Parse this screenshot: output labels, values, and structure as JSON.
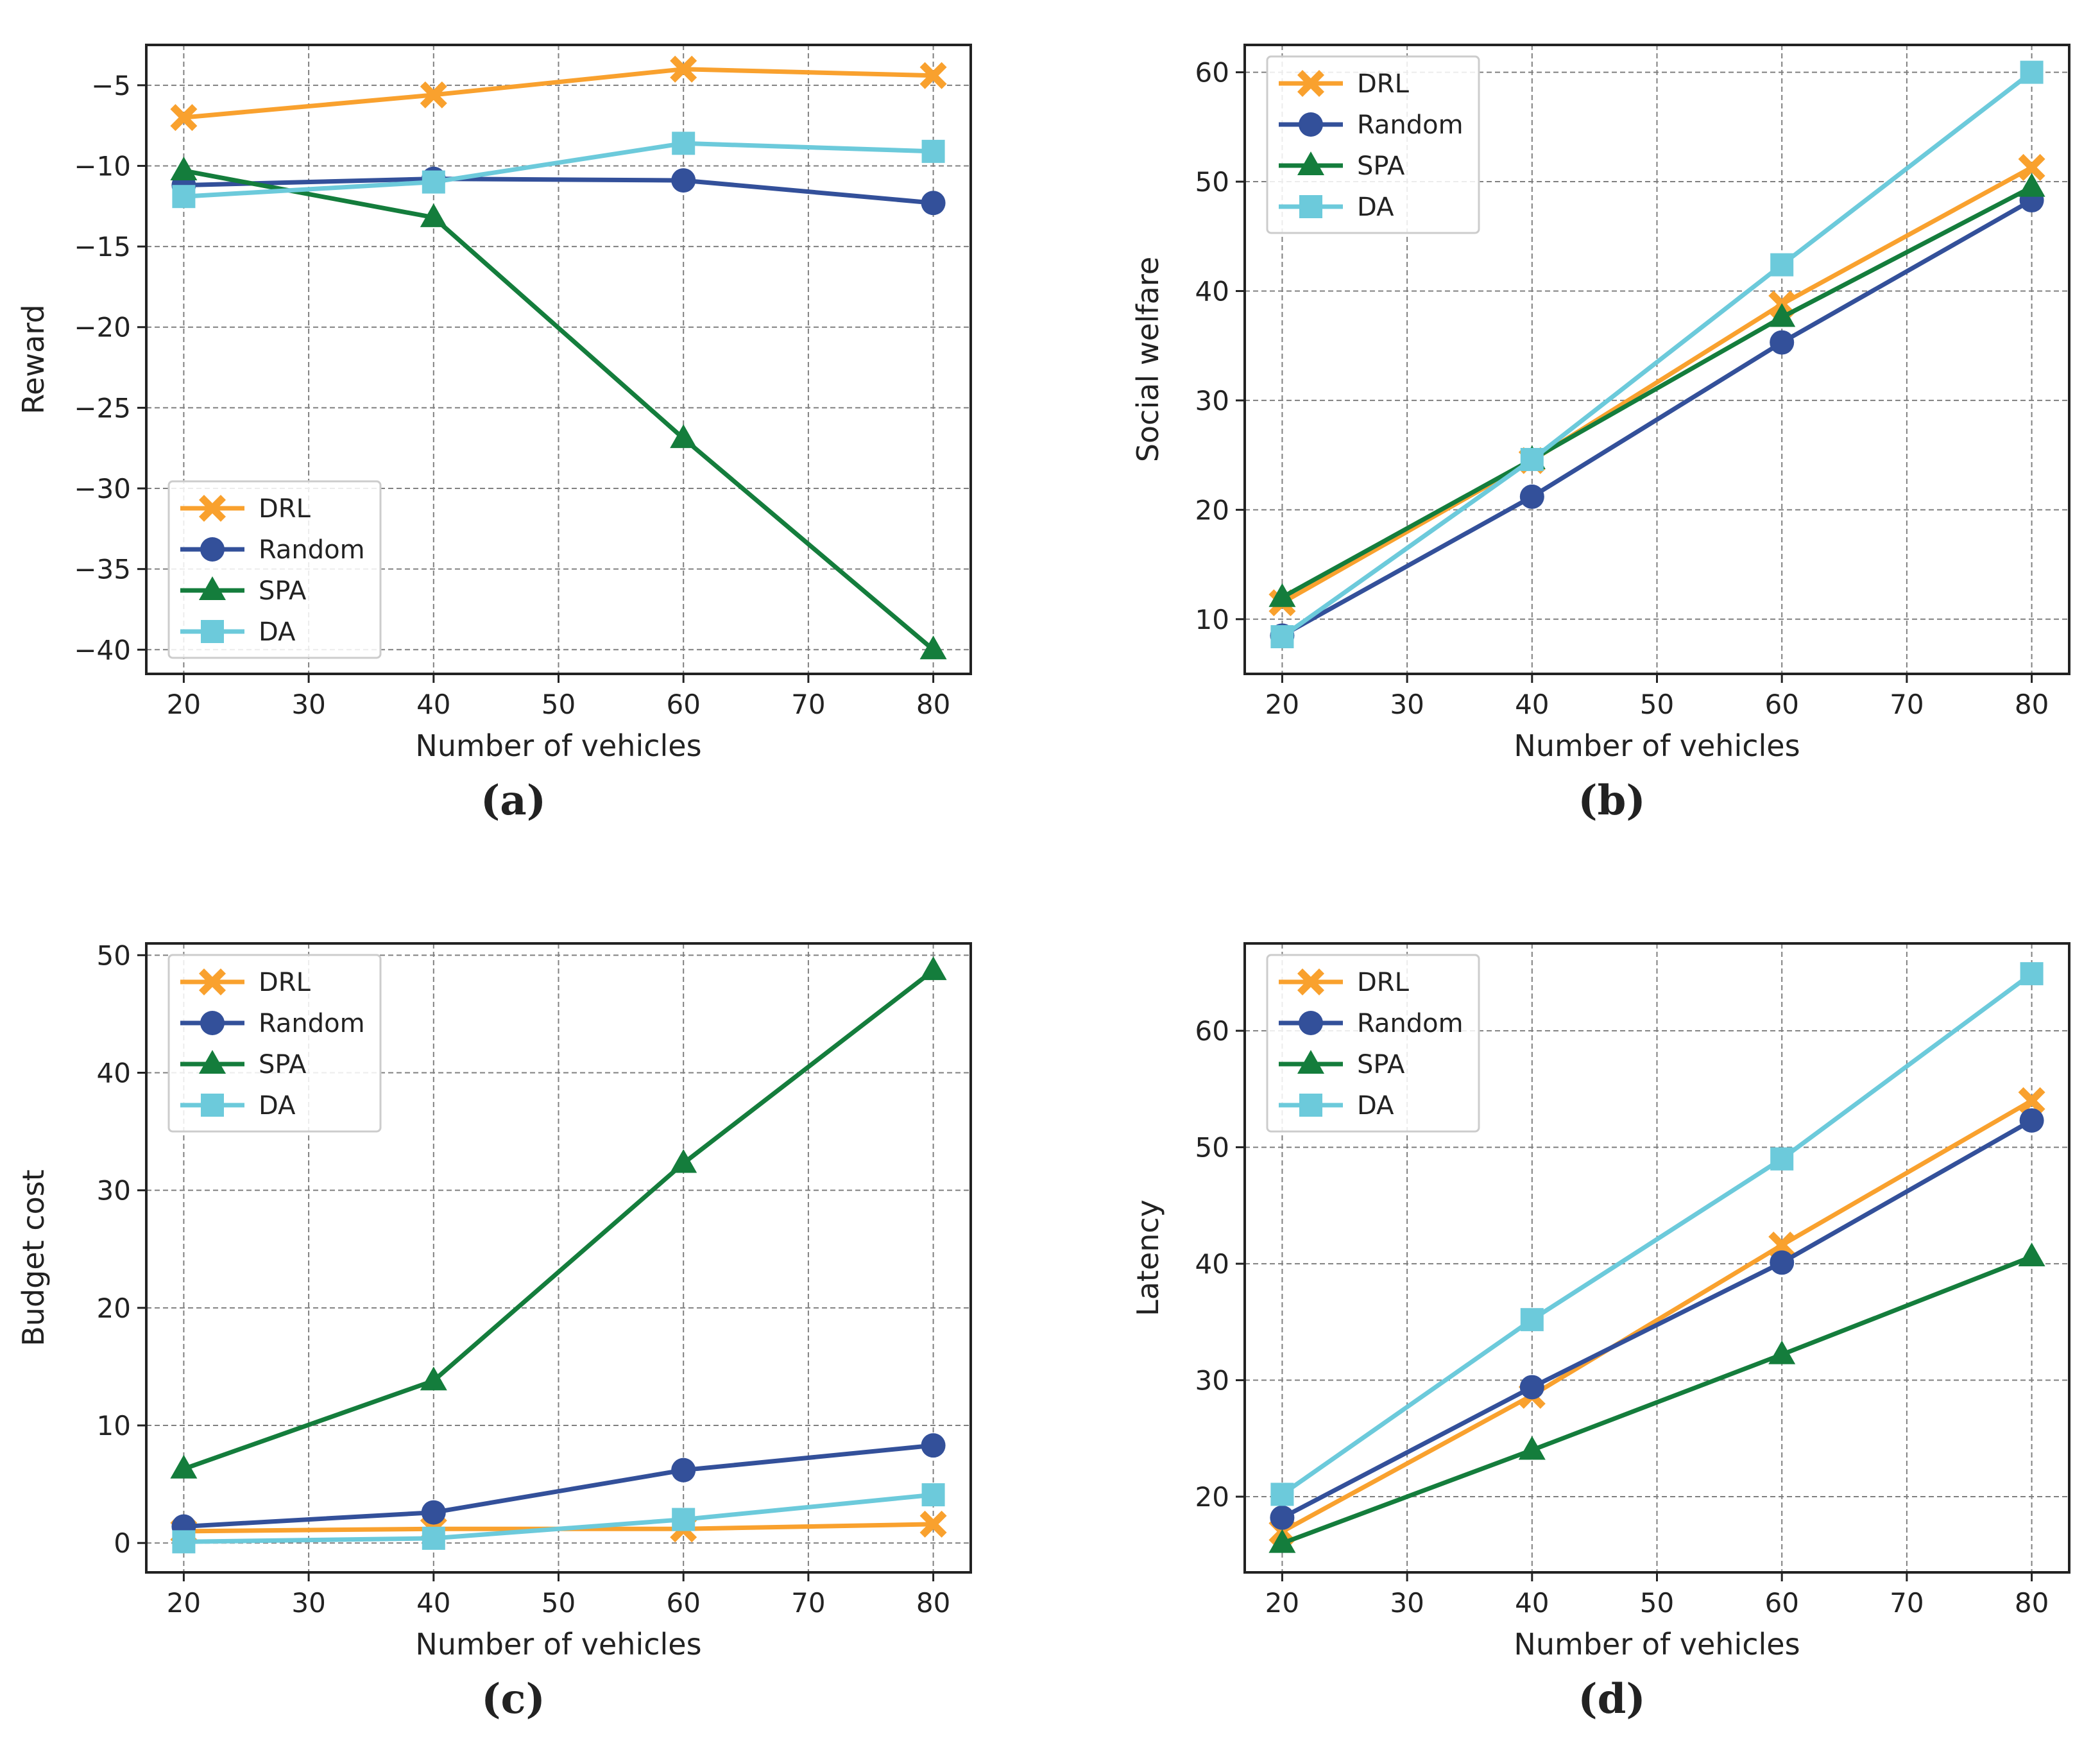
{
  "colors": {
    "DRL": "#F9A12E",
    "Random": "#33509A",
    "SPA": "#147D3C",
    "DA": "#6CCADB",
    "axis": "#222222",
    "grid": "#808080"
  },
  "series_order": [
    "DRL",
    "Random",
    "SPA",
    "DA"
  ],
  "markers": {
    "DRL": "x-filled",
    "Random": "circle",
    "SPA": "triangle",
    "DA": "square"
  },
  "chart_data": [
    {
      "id": "a",
      "type": "line",
      "caption": "(a)",
      "xlabel": "Number of vehicles",
      "ylabel": "Reward",
      "xlim": [
        17,
        83
      ],
      "ylim": [
        -41.5,
        -2.5
      ],
      "xticks": [
        20,
        30,
        40,
        50,
        60,
        70,
        80
      ],
      "xtick_labels": [
        "20",
        "30",
        "40",
        "50",
        "60",
        "70",
        "80"
      ],
      "yticks": [
        -40,
        -35,
        -30,
        -25,
        -20,
        -15,
        -10,
        -5
      ],
      "ytick_labels": [
        "−40",
        "−35",
        "−30",
        "−25",
        "−20",
        "−15",
        "−10",
        "−5"
      ],
      "legend_position": "bottom-left",
      "x": [
        20,
        40,
        60,
        80
      ],
      "series": [
        {
          "name": "DRL",
          "values": [
            -7.0,
            -5.6,
            -4.0,
            -4.4
          ]
        },
        {
          "name": "Random",
          "values": [
            -11.2,
            -10.8,
            -10.9,
            -12.3
          ]
        },
        {
          "name": "SPA",
          "values": [
            -10.3,
            -13.2,
            -26.9,
            -40.0
          ]
        },
        {
          "name": "DA",
          "values": [
            -11.9,
            -11.0,
            -8.6,
            -9.1
          ]
        }
      ]
    },
    {
      "id": "b",
      "type": "line",
      "caption": "(b)",
      "xlabel": "Number of vehicles",
      "ylabel": "Social welfare",
      "xlim": [
        17,
        83
      ],
      "ylim": [
        5,
        62.5
      ],
      "xticks": [
        20,
        30,
        40,
        50,
        60,
        70,
        80
      ],
      "xtick_labels": [
        "20",
        "30",
        "40",
        "50",
        "60",
        "70",
        "80"
      ],
      "yticks": [
        10,
        20,
        30,
        40,
        50,
        60
      ],
      "ytick_labels": [
        "10",
        "20",
        "30",
        "40",
        "50",
        "60"
      ],
      "legend_position": "top-left",
      "x": [
        20,
        40,
        60,
        80
      ],
      "series": [
        {
          "name": "DRL",
          "values": [
            11.5,
            24.5,
            38.8,
            51.3
          ]
        },
        {
          "name": "Random",
          "values": [
            8.5,
            21.2,
            35.3,
            48.3
          ]
        },
        {
          "name": "SPA",
          "values": [
            12.0,
            24.6,
            37.6,
            49.5
          ]
        },
        {
          "name": "DA",
          "values": [
            8.4,
            24.6,
            42.4,
            60.0
          ]
        }
      ]
    },
    {
      "id": "c",
      "type": "line",
      "caption": "(c)",
      "xlabel": "Number of vehicles",
      "ylabel": "Budget cost",
      "xlim": [
        17,
        83
      ],
      "ylim": [
        -2.5,
        51
      ],
      "xticks": [
        20,
        30,
        40,
        50,
        60,
        70,
        80
      ],
      "xtick_labels": [
        "20",
        "30",
        "40",
        "50",
        "60",
        "70",
        "80"
      ],
      "yticks": [
        0,
        10,
        20,
        30,
        40,
        50
      ],
      "ytick_labels": [
        "0",
        "10",
        "20",
        "30",
        "40",
        "50"
      ],
      "legend_position": "top-left",
      "x": [
        20,
        40,
        60,
        80
      ],
      "series": [
        {
          "name": "DRL",
          "values": [
            1.0,
            1.2,
            1.2,
            1.6
          ]
        },
        {
          "name": "Random",
          "values": [
            1.4,
            2.6,
            6.2,
            8.3
          ]
        },
        {
          "name": "SPA",
          "values": [
            6.3,
            13.8,
            32.3,
            48.7
          ]
        },
        {
          "name": "DA",
          "values": [
            0.1,
            0.4,
            2.0,
            4.1
          ]
        }
      ]
    },
    {
      "id": "d",
      "type": "line",
      "caption": "(d)",
      "xlabel": "Number of vehicles",
      "ylabel": "Latency",
      "xlim": [
        17,
        83
      ],
      "ylim": [
        13.5,
        67.5
      ],
      "xticks": [
        20,
        30,
        40,
        50,
        60,
        70,
        80
      ],
      "xtick_labels": [
        "20",
        "30",
        "40",
        "50",
        "60",
        "70",
        "80"
      ],
      "yticks": [
        20,
        30,
        40,
        50,
        60
      ],
      "ytick_labels": [
        "20",
        "30",
        "40",
        "50",
        "60"
      ],
      "legend_position": "top-left",
      "x": [
        20,
        40,
        60,
        80
      ],
      "series": [
        {
          "name": "DRL",
          "values": [
            17.0,
            28.7,
            41.6,
            54.0
          ]
        },
        {
          "name": "Random",
          "values": [
            18.2,
            29.4,
            40.1,
            52.3
          ]
        },
        {
          "name": "SPA",
          "values": [
            16.0,
            24.0,
            32.2,
            40.6
          ]
        },
        {
          "name": "DA",
          "values": [
            20.2,
            35.2,
            49.0,
            64.9
          ]
        }
      ]
    }
  ]
}
